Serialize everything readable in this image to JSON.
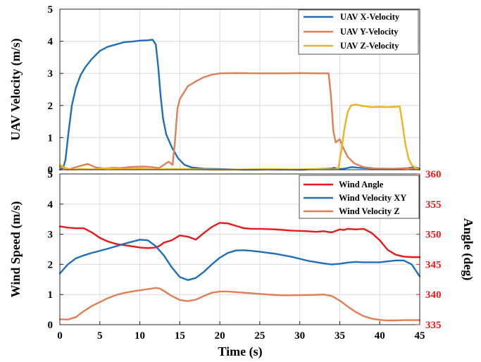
{
  "colors": {
    "x_velocity": "#1f6fb8",
    "y_velocity": "#e07f55",
    "z_velocity": "#eab521",
    "wind_angle": "#e8191b",
    "wind_xy": "#1f6fb8",
    "wind_z": "#e07f55",
    "right_axis": "#e8191b"
  },
  "chart_data": [
    {
      "type": "line",
      "title": "",
      "xlabel": "",
      "ylabel": "UAV Velocity (m/s)",
      "xlim": [
        0,
        45
      ],
      "ylim": [
        0,
        5
      ],
      "yticks": [
        0,
        1,
        2,
        3,
        4,
        5
      ],
      "grid": true,
      "legend_position": "top-right",
      "series": [
        {
          "name": "UAV X-Velocity",
          "color_key": "x_velocity",
          "points": [
            [
              0,
              0
            ],
            [
              0.4,
              0.05
            ],
            [
              0.7,
              0.3
            ],
            [
              1.1,
              1.2
            ],
            [
              1.5,
              2.0
            ],
            [
              2,
              2.55
            ],
            [
              2.6,
              2.95
            ],
            [
              3.2,
              3.2
            ],
            [
              4,
              3.45
            ],
            [
              5,
              3.7
            ],
            [
              6,
              3.83
            ],
            [
              7,
              3.9
            ],
            [
              8,
              3.97
            ],
            [
              9,
              3.99
            ],
            [
              10,
              4.02
            ],
            [
              11,
              4.03
            ],
            [
              11.6,
              4.05
            ],
            [
              12,
              3.9
            ],
            [
              12.3,
              3.2
            ],
            [
              12.6,
              2.3
            ],
            [
              12.9,
              1.6
            ],
            [
              13.3,
              1.1
            ],
            [
              14,
              0.7
            ],
            [
              14.8,
              0.35
            ],
            [
              15.6,
              0.15
            ],
            [
              16.5,
              0.07
            ],
            [
              18,
              0.03
            ],
            [
              20,
              0.02
            ],
            [
              23,
              0
            ],
            [
              26,
              0.01
            ],
            [
              30,
              0
            ],
            [
              32,
              0.02
            ],
            [
              33.8,
              0.03
            ],
            [
              34.3,
              0.06
            ],
            [
              34.8,
              0.02
            ],
            [
              35.5,
              0.03
            ],
            [
              36.5,
              0.08
            ],
            [
              38,
              0.05
            ],
            [
              40,
              0.03
            ],
            [
              42,
              0.03
            ],
            [
              43.5,
              0.05
            ],
            [
              44.3,
              0.08
            ],
            [
              45,
              0.03
            ]
          ]
        },
        {
          "name": "UAV Y-Velocity",
          "color_key": "y_velocity",
          "points": [
            [
              0,
              0.1
            ],
            [
              1,
              0
            ],
            [
              2,
              0.08
            ],
            [
              3,
              0.15
            ],
            [
              3.5,
              0.18
            ],
            [
              4.5,
              0.07
            ],
            [
              5.5,
              0.04
            ],
            [
              6.5,
              0.06
            ],
            [
              7.5,
              0.05
            ],
            [
              9,
              0.09
            ],
            [
              10.5,
              0.1
            ],
            [
              11.5,
              0.08
            ],
            [
              12.4,
              0.05
            ],
            [
              13,
              0.15
            ],
            [
              13.6,
              0.25
            ],
            [
              14.1,
              0.15
            ],
            [
              14.4,
              0.9
            ],
            [
              14.7,
              1.9
            ],
            [
              15,
              2.2
            ],
            [
              15.5,
              2.4
            ],
            [
              16,
              2.6
            ],
            [
              17,
              2.75
            ],
            [
              18,
              2.88
            ],
            [
              19,
              2.96
            ],
            [
              20,
              3.0
            ],
            [
              22,
              3.01
            ],
            [
              25,
              3.0
            ],
            [
              28,
              3.0
            ],
            [
              30,
              3.01
            ],
            [
              32,
              3.0
            ],
            [
              33.6,
              3.0
            ],
            [
              33.9,
              2.3
            ],
            [
              34.2,
              1.2
            ],
            [
              34.5,
              0.85
            ],
            [
              35,
              0.95
            ],
            [
              35.4,
              0.7
            ],
            [
              36,
              0.4
            ],
            [
              36.8,
              0.2
            ],
            [
              38,
              0.08
            ],
            [
              40,
              0.02
            ],
            [
              42,
              0.03
            ],
            [
              43.5,
              0.05
            ],
            [
              44.5,
              0.02
            ],
            [
              45,
              0
            ]
          ]
        },
        {
          "name": "UAV Z-Velocity",
          "color_key": "z_velocity",
          "points": [
            [
              0,
              0.15
            ],
            [
              0.7,
              0.05
            ],
            [
              1.5,
              0
            ],
            [
              2.5,
              0.02
            ],
            [
              4,
              0.01
            ],
            [
              6,
              0.05
            ],
            [
              8,
              0.02
            ],
            [
              10,
              0.04
            ],
            [
              12,
              0.01
            ],
            [
              14,
              0.02
            ],
            [
              16,
              0.02
            ],
            [
              18,
              0.01
            ],
            [
              20,
              0
            ],
            [
              23,
              0.01
            ],
            [
              26,
              0.02
            ],
            [
              29,
              0.01
            ],
            [
              32,
              0.02
            ],
            [
              34,
              0.01
            ],
            [
              34.8,
              0.02
            ],
            [
              35.2,
              0.6
            ],
            [
              35.6,
              1.3
            ],
            [
              36,
              1.8
            ],
            [
              36.4,
              2.0
            ],
            [
              37,
              2.03
            ],
            [
              38,
              1.98
            ],
            [
              39,
              1.95
            ],
            [
              40,
              1.96
            ],
            [
              41,
              1.95
            ],
            [
              42,
              1.96
            ],
            [
              42.5,
              1.97
            ],
            [
              42.8,
              1.5
            ],
            [
              43.2,
              0.8
            ],
            [
              43.6,
              0.35
            ],
            [
              44,
              0.15
            ],
            [
              44.5,
              0.05
            ],
            [
              45,
              0
            ]
          ]
        }
      ]
    },
    {
      "type": "line",
      "title": "",
      "xlabel": "Time (s)",
      "ylabel": "Wind Speed (m/s)",
      "y2label": "Angle (deg)",
      "xlim": [
        0,
        45
      ],
      "xticks": [
        0,
        5,
        10,
        15,
        20,
        25,
        30,
        35,
        40,
        45
      ],
      "ylim": [
        0,
        5
      ],
      "yticks": [
        0,
        1,
        2,
        3,
        4,
        5
      ],
      "y2lim": [
        335,
        360
      ],
      "y2ticks": [
        335,
        340,
        345,
        350,
        355,
        360
      ],
      "grid": true,
      "legend_position": "top-right",
      "series": [
        {
          "name": "Wind Angle",
          "color_key": "wind_angle",
          "axis": "right",
          "points": [
            [
              0,
              351.3
            ],
            [
              1,
              351.1
            ],
            [
              2,
              351.0
            ],
            [
              3,
              351.0
            ],
            [
              4,
              350.3
            ],
            [
              5,
              349.4
            ],
            [
              6,
              348.8
            ],
            [
              7,
              348.4
            ],
            [
              8,
              348.2
            ],
            [
              9,
              348.0
            ],
            [
              10,
              347.8
            ],
            [
              11,
              347.7
            ],
            [
              12,
              347.8
            ],
            [
              12.5,
              348.1
            ],
            [
              13,
              348.6
            ],
            [
              14,
              349.0
            ],
            [
              15,
              349.8
            ],
            [
              16,
              349.6
            ],
            [
              17,
              349.1
            ],
            [
              18,
              350.2
            ],
            [
              19,
              351.2
            ],
            [
              20,
              351.9
            ],
            [
              21,
              351.8
            ],
            [
              22,
              351.4
            ],
            [
              23,
              351.0
            ],
            [
              24,
              350.9
            ],
            [
              25,
              350.9
            ],
            [
              27,
              350.8
            ],
            [
              29,
              350.6
            ],
            [
              31,
              350.5
            ],
            [
              32,
              350.4
            ],
            [
              33,
              350.5
            ],
            [
              34,
              350.3
            ],
            [
              35,
              350.8
            ],
            [
              35.5,
              350.7
            ],
            [
              36,
              350.9
            ],
            [
              37,
              350.8
            ],
            [
              38,
              350.9
            ],
            [
              39,
              350.2
            ],
            [
              40,
              349.0
            ],
            [
              41,
              347.4
            ],
            [
              42,
              346.6
            ],
            [
              43,
              346.3
            ],
            [
              44,
              346.2
            ],
            [
              45,
              346.2
            ]
          ]
        },
        {
          "name": "Wind Velocity XY",
          "color_key": "wind_xy",
          "axis": "left",
          "points": [
            [
              0,
              1.7
            ],
            [
              1,
              2.0
            ],
            [
              2,
              2.2
            ],
            [
              3,
              2.3
            ],
            [
              4,
              2.38
            ],
            [
              5,
              2.45
            ],
            [
              6,
              2.52
            ],
            [
              7,
              2.6
            ],
            [
              8,
              2.68
            ],
            [
              9,
              2.75
            ],
            [
              10,
              2.82
            ],
            [
              11,
              2.8
            ],
            [
              12,
              2.6
            ],
            [
              13,
              2.3
            ],
            [
              14,
              1.9
            ],
            [
              15,
              1.58
            ],
            [
              16,
              1.48
            ],
            [
              17,
              1.55
            ],
            [
              18,
              1.75
            ],
            [
              19,
              2.0
            ],
            [
              20,
              2.22
            ],
            [
              21,
              2.38
            ],
            [
              22,
              2.46
            ],
            [
              23,
              2.47
            ],
            [
              24,
              2.45
            ],
            [
              25,
              2.42
            ],
            [
              27,
              2.35
            ],
            [
              29,
              2.25
            ],
            [
              31,
              2.12
            ],
            [
              33,
              2.03
            ],
            [
              34,
              2.0
            ],
            [
              35,
              2.02
            ],
            [
              36,
              2.06
            ],
            [
              37,
              2.08
            ],
            [
              38,
              2.07
            ],
            [
              40,
              2.07
            ],
            [
              41,
              2.1
            ],
            [
              42,
              2.13
            ],
            [
              43,
              2.13
            ],
            [
              44,
              2.0
            ],
            [
              45,
              1.6
            ]
          ]
        },
        {
          "name": "Wind Velocity Z",
          "color_key": "wind_z",
          "axis": "left",
          "points": [
            [
              0,
              0.18
            ],
            [
              1,
              0.17
            ],
            [
              2,
              0.25
            ],
            [
              3,
              0.45
            ],
            [
              4,
              0.62
            ],
            [
              5,
              0.75
            ],
            [
              6,
              0.88
            ],
            [
              7,
              0.98
            ],
            [
              8,
              1.05
            ],
            [
              9,
              1.1
            ],
            [
              10,
              1.14
            ],
            [
              11,
              1.18
            ],
            [
              12,
              1.22
            ],
            [
              12.5,
              1.2
            ],
            [
              13,
              1.12
            ],
            [
              14,
              0.95
            ],
            [
              15,
              0.82
            ],
            [
              16,
              0.78
            ],
            [
              17,
              0.83
            ],
            [
              18,
              0.95
            ],
            [
              19,
              1.06
            ],
            [
              20,
              1.1
            ],
            [
              21,
              1.1
            ],
            [
              22,
              1.08
            ],
            [
              24,
              1.04
            ],
            [
              26,
              1.0
            ],
            [
              28,
              0.97
            ],
            [
              30,
              0.98
            ],
            [
              32,
              0.99
            ],
            [
              33,
              1.0
            ],
            [
              34,
              0.95
            ],
            [
              35,
              0.8
            ],
            [
              36,
              0.6
            ],
            [
              37,
              0.42
            ],
            [
              38,
              0.28
            ],
            [
              39,
              0.2
            ],
            [
              40,
              0.16
            ],
            [
              41,
              0.14
            ],
            [
              42,
              0.14
            ],
            [
              43,
              0.15
            ],
            [
              44,
              0.15
            ],
            [
              45,
              0.15
            ]
          ]
        }
      ]
    }
  ]
}
